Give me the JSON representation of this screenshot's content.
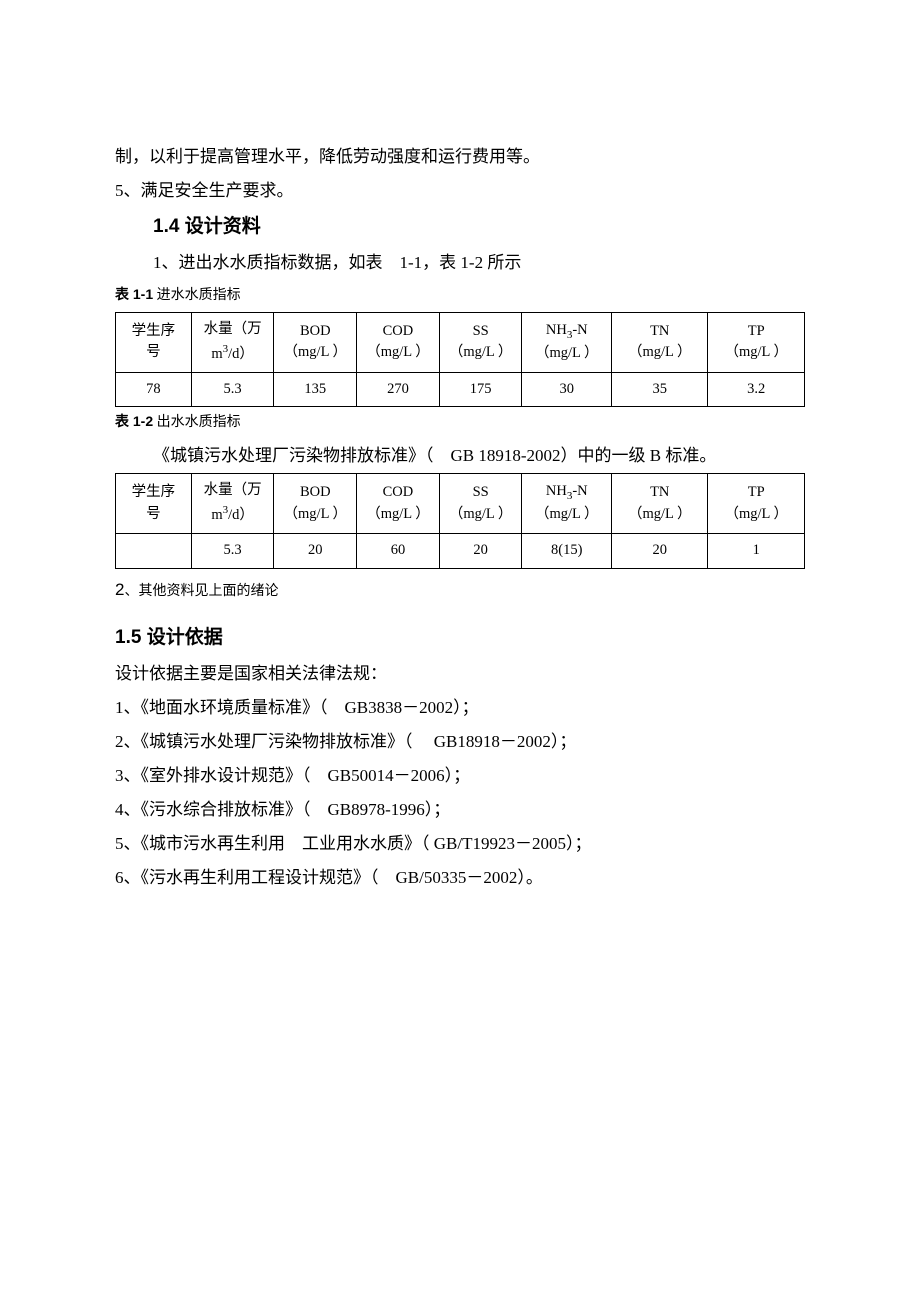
{
  "intro_line1": "制，以利于提高管理水平，降低劳动强度和运行费用等。",
  "intro_line2": "5、满足安全生产要求。",
  "section14_num": "1.4",
  "section14_title": " 设计资料",
  "section14_sub": "1、进出水水质指标数据，如表　1-1，表 1-2 所示",
  "table11_cap_num": "表 1-1",
  "table11_cap_txt": " 进水水质指标",
  "headers": {
    "col0_l1": "学生序",
    "col0_l2": "号",
    "col1_l1": "水量（万",
    "col1_l2a": "m",
    "col1_l2b": "3",
    "col1_l2c": "/d）",
    "col2_l1": "BOD",
    "col3_l1": "COD",
    "col4_l1": "SS",
    "col5_l1a": "NH",
    "col5_l1b": "3",
    "col5_l1c": "-N",
    "col6_l1": "TN",
    "col7_l1": "TP",
    "unit": "（mg/L ）"
  },
  "table11_row": {
    "c0": "78",
    "c1": "5.3",
    "c2": "135",
    "c3": "270",
    "c4": "175",
    "c5": "30",
    "c6": "35",
    "c7": "3.2"
  },
  "table12_cap_num": "表 1-2",
  "table12_cap_txt": " 出水水质指标",
  "table12_note": "《城镇污水处理厂污染物排放标准》（　GB 18918-2002）中的一级 B 标准。",
  "table12_row": {
    "c0": "",
    "c1": "5.3",
    "c2": "20",
    "c3": "60",
    "c4": "20",
    "c5": "8(15)",
    "c6": "20",
    "c7": "1"
  },
  "footnote2_num": "2",
  "footnote2_txt": "、其他资料见上面的绪论",
  "section15_num": "1.5",
  "section15_title": " 设计依据",
  "section15_lead": "设计依据主要是国家相关法律法规：",
  "refs": {
    "r1": "1、《地面水环境质量标准》（　GB3838－2002）；",
    "r2": "2、《城镇污水处理厂污染物排放标准》（　 GB18918－2002）；",
    "r3": "3、《室外排水设计规范》（　GB50014－2006）；",
    "r4": "4、《污水综合排放标准》（　GB8978-1996）；",
    "r5": "5、《城市污水再生利用　工业用水水质》（  GB/T19923－2005）；",
    "r6": "6、《污水再生利用工程设计规范》（　GB/50335－2002）。"
  }
}
